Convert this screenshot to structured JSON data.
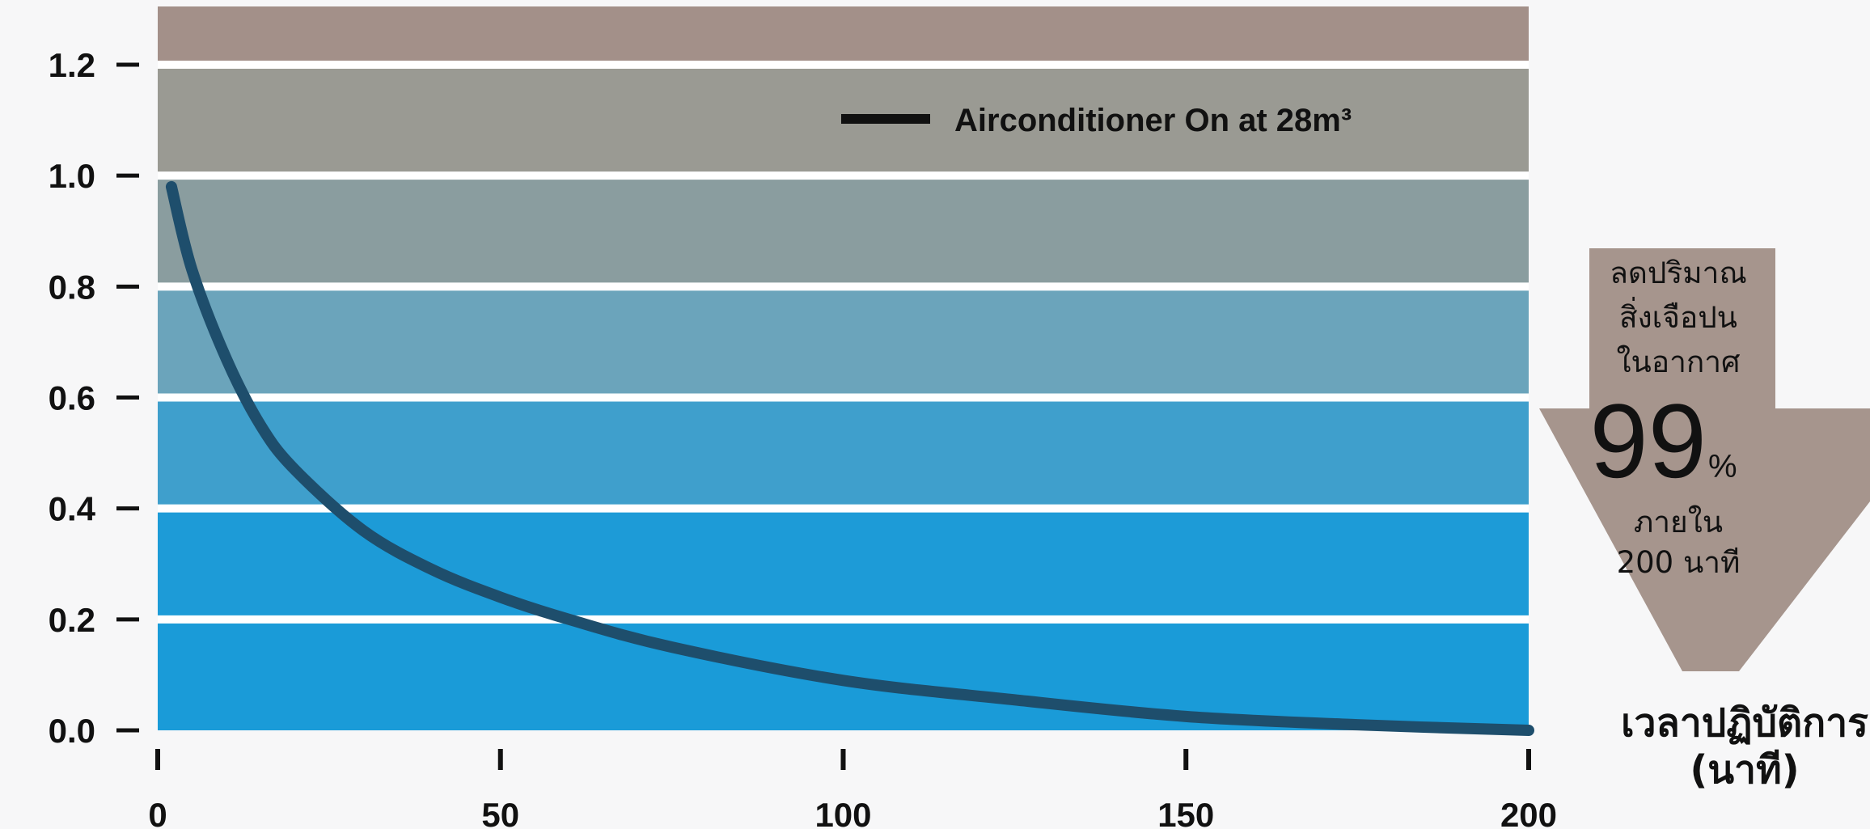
{
  "chart_data": {
    "type": "line",
    "title": "",
    "xlabel": "เวลาปฏิบัติการ (นาที)",
    "xlabel_lines": [
      "เวลาปฏิบัติการ",
      "(นาที)"
    ],
    "ylabel": "",
    "xlim": [
      0,
      200
    ],
    "ylim": [
      0,
      1.2
    ],
    "x_ticks": [
      0,
      50,
      100,
      150,
      200
    ],
    "y_ticks": [
      0.0,
      0.2,
      0.4,
      0.6,
      0.8,
      1.0,
      1.2
    ],
    "x_tick_labels": [
      "0",
      "50",
      "100",
      "150",
      "200"
    ],
    "y_tick_labels": [
      "0.0",
      "0.2",
      "0.4",
      "0.6",
      "0.8",
      "1.0",
      "1.2"
    ],
    "series": [
      {
        "name": "Airconditioner On at 28m³",
        "color": "#1e4e6c",
        "x": [
          2,
          5,
          10,
          15,
          20,
          30,
          40,
          50,
          60,
          75,
          100,
          125,
          150,
          175,
          200
        ],
        "y": [
          0.98,
          0.83,
          0.67,
          0.55,
          0.47,
          0.36,
          0.29,
          0.24,
          0.2,
          0.15,
          0.09,
          0.055,
          0.025,
          0.01,
          0.0
        ]
      }
    ],
    "legend": {
      "position": "top-right"
    },
    "band_colors": [
      "#1a9bd8",
      "#1d9bd7",
      "#3f9fcc",
      "#6ba4bb",
      "#8a9d9f",
      "#9a9a93",
      "#a39089"
    ],
    "annotation": {
      "lines": [
        "ลดปริมาณ",
        "สิ่งเจือปน",
        "ในอากาศ"
      ],
      "value": "99",
      "unit": "%",
      "sub_lines": [
        "ภายใน",
        "200 นาที"
      ],
      "color": "#a6958d"
    }
  }
}
